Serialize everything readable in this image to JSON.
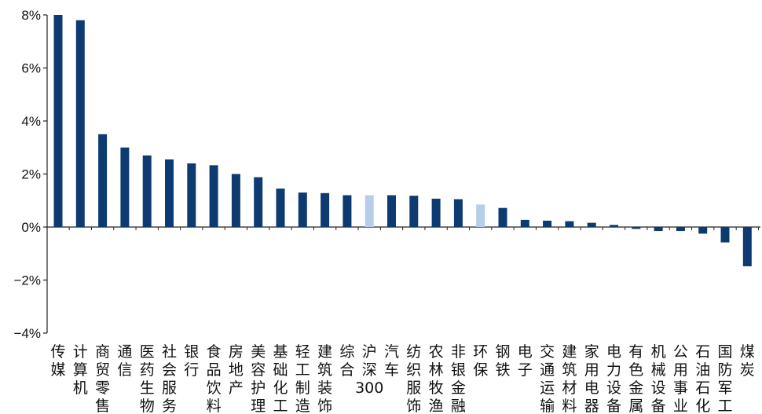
{
  "chart_data": {
    "type": "bar",
    "title": "",
    "xlabel": "",
    "ylabel": "",
    "ylim": [
      -4,
      8
    ],
    "yticks": [
      -4,
      -2,
      0,
      2,
      4,
      6,
      8
    ],
    "ytick_labels": [
      "−4%",
      "−2%",
      "0%",
      "2%",
      "4%",
      "6%",
      "8%"
    ],
    "unit": "%",
    "grid": false,
    "legend": "none",
    "colors": {
      "default": "#0d3a70",
      "highlight": "#b8cde8"
    },
    "categories": [
      "传媒",
      "计算机",
      "商贸零售",
      "通信",
      "医药生物",
      "社会服务",
      "银行",
      "食品饮料",
      "房地产",
      "美容护理",
      "基础化工",
      "轻工制造",
      "建筑装饰",
      "综合",
      "沪深300",
      "汽车",
      "纺织服饰",
      "农林牧渔",
      "非银金融",
      "环保",
      "钢铁",
      "电子",
      "交通运输",
      "建筑材料",
      "家用电器",
      "电力设备",
      "有色金属",
      "机械设备",
      "公用事业",
      "石油石化",
      "国防军工",
      "煤炭"
    ],
    "values": [
      8.0,
      7.8,
      3.5,
      3.0,
      2.7,
      2.55,
      2.4,
      2.33,
      2.0,
      1.88,
      1.45,
      1.3,
      1.28,
      1.2,
      1.2,
      1.2,
      1.18,
      1.07,
      1.05,
      0.85,
      0.72,
      0.27,
      0.24,
      0.22,
      0.16,
      0.08,
      -0.07,
      -0.15,
      -0.15,
      -0.25,
      -0.58,
      -1.48
    ],
    "highlight": [
      "沪深300",
      "环保"
    ]
  }
}
